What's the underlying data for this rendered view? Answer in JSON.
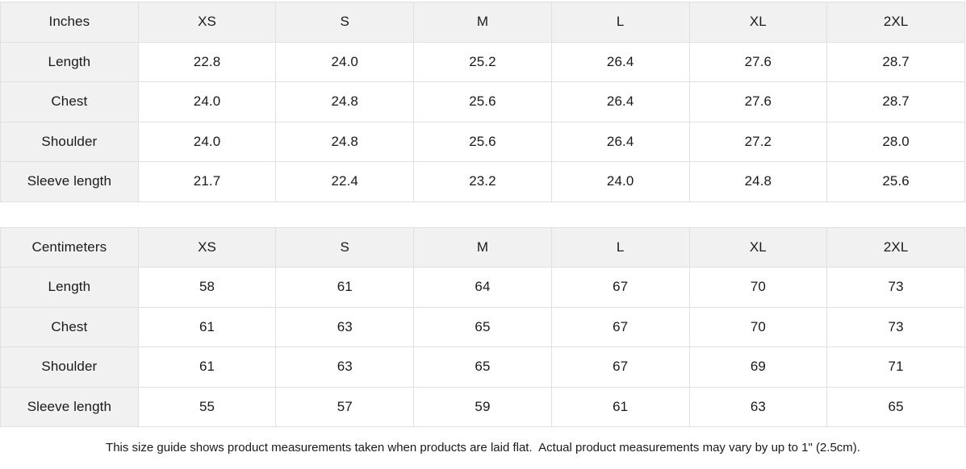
{
  "chart_data": [
    {
      "type": "table",
      "title": "Inches",
      "columns": [
        "Inches",
        "XS",
        "S",
        "M",
        "L",
        "XL",
        "2XL"
      ],
      "rows": [
        [
          "Length",
          "22.8",
          "24.0",
          "25.2",
          "26.4",
          "27.6",
          "28.7"
        ],
        [
          "Chest",
          "24.0",
          "24.8",
          "25.6",
          "26.4",
          "27.6",
          "28.7"
        ],
        [
          "Shoulder",
          "24.0",
          "24.8",
          "25.6",
          "26.4",
          "27.2",
          "28.0"
        ],
        [
          "Sleeve length",
          "21.7",
          "22.4",
          "23.2",
          "24.0",
          "24.8",
          "25.6"
        ]
      ]
    },
    {
      "type": "table",
      "title": "Centimeters",
      "columns": [
        "Centimeters",
        "XS",
        "S",
        "M",
        "L",
        "XL",
        "2XL"
      ],
      "rows": [
        [
          "Length",
          "58",
          "61",
          "64",
          "67",
          "70",
          "73"
        ],
        [
          "Chest",
          "61",
          "63",
          "65",
          "67",
          "70",
          "73"
        ],
        [
          "Shoulder",
          "61",
          "63",
          "65",
          "67",
          "69",
          "71"
        ],
        [
          "Sleeve length",
          "55",
          "57",
          "59",
          "61",
          "63",
          "65"
        ]
      ]
    }
  ],
  "footer": {
    "note": "This size guide shows product measurements taken when products are laid flat.  Actual product measurements may vary by up to 1\" (2.5cm)."
  },
  "colors": {
    "header_bg": "#f1f1f1",
    "border": "#e0e0e0",
    "text": "#1a1a1a",
    "cell_bg": "#ffffff"
  }
}
